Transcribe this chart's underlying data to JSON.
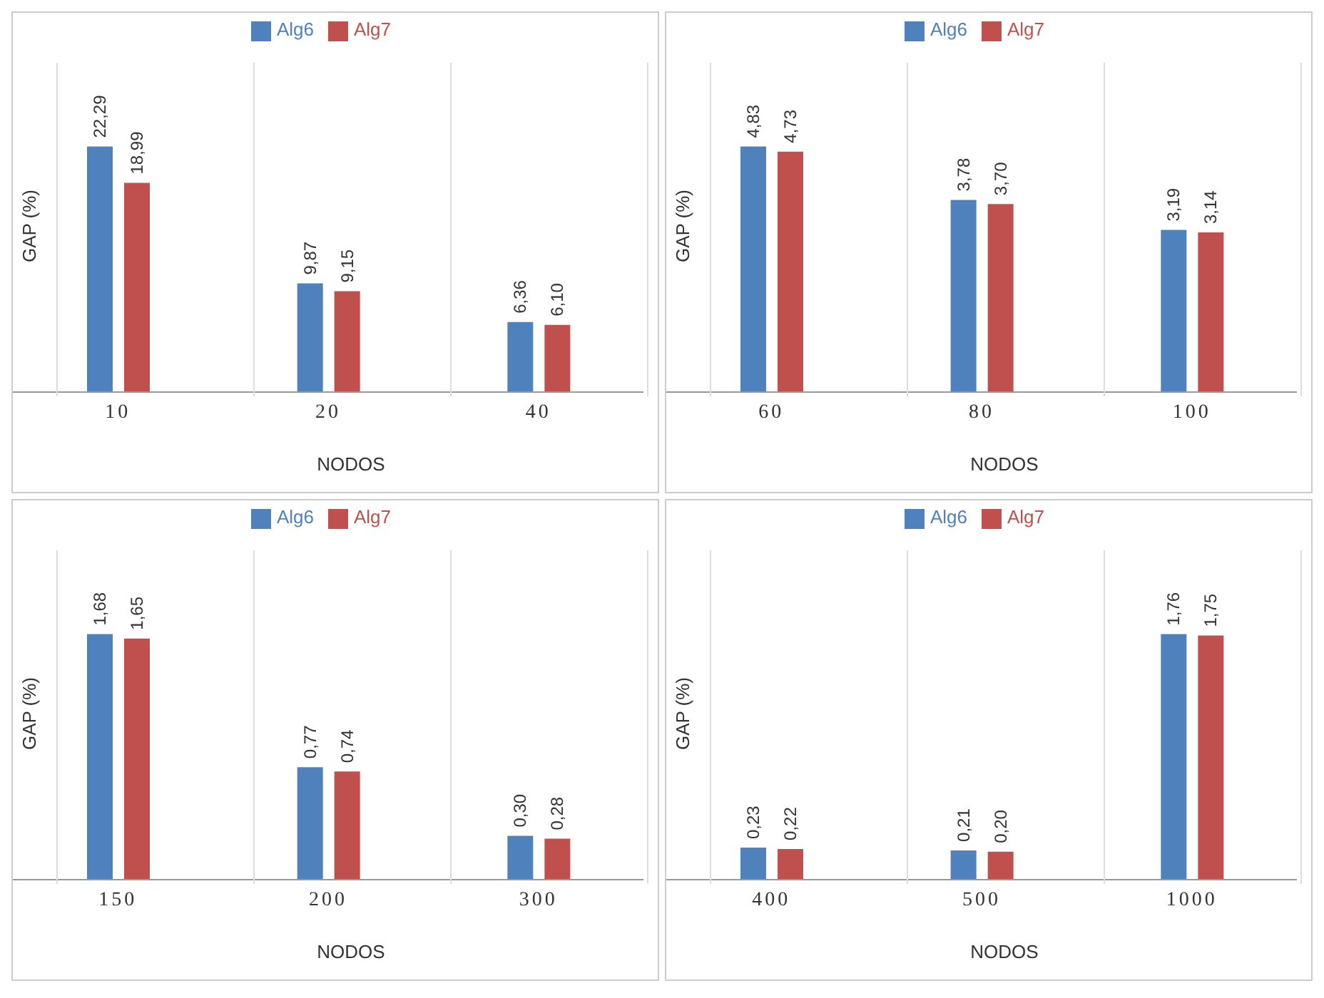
{
  "chart_data": [
    {
      "type": "bar",
      "xlabel": "NODOS",
      "ylabel": "GAP (%)",
      "categories": [
        "10",
        "20",
        "40"
      ],
      "series": [
        {
          "name": "Alg6",
          "color": "#4f81bd",
          "values": [
            22.29,
            9.87,
            6.36
          ],
          "value_labels": [
            "22,29",
            "9,87",
            "6,36"
          ]
        },
        {
          "name": "Alg7",
          "color": "#c0504d",
          "values": [
            18.99,
            9.15,
            6.1
          ],
          "value_labels": [
            "18,99",
            "9,15",
            "6,10"
          ]
        }
      ],
      "legend": "top",
      "grid": "x"
    },
    {
      "type": "bar",
      "xlabel": "NODOS",
      "ylabel": "GAP (%)",
      "categories": [
        "60",
        "80",
        "100"
      ],
      "series": [
        {
          "name": "Alg6",
          "color": "#4f81bd",
          "values": [
            4.83,
            3.78,
            3.19
          ],
          "value_labels": [
            "4,83",
            "3,78",
            "3,19"
          ]
        },
        {
          "name": "Alg7",
          "color": "#c0504d",
          "values": [
            4.73,
            3.7,
            3.14
          ],
          "value_labels": [
            "4,73",
            "3,70",
            "3,14"
          ]
        }
      ],
      "legend": "top",
      "grid": "x"
    },
    {
      "type": "bar",
      "xlabel": "NODOS",
      "ylabel": "GAP (%)",
      "categories": [
        "150",
        "200",
        "300"
      ],
      "series": [
        {
          "name": "Alg6",
          "color": "#4f81bd",
          "values": [
            1.68,
            0.77,
            0.3
          ],
          "value_labels": [
            "1,68",
            "0,77",
            "0,30"
          ]
        },
        {
          "name": "Alg7",
          "color": "#c0504d",
          "values": [
            1.65,
            0.74,
            0.28
          ],
          "value_labels": [
            "1,65",
            "0,74",
            "0,28"
          ]
        }
      ],
      "legend": "top",
      "grid": "x"
    },
    {
      "type": "bar",
      "xlabel": "NODOS",
      "ylabel": "GAP (%)",
      "categories": [
        "400",
        "500",
        "1000"
      ],
      "series": [
        {
          "name": "Alg6",
          "color": "#4f81bd",
          "values": [
            0.23,
            0.21,
            1.76
          ],
          "value_labels": [
            "0,23",
            "0,21",
            "1,76"
          ]
        },
        {
          "name": "Alg7",
          "color": "#c0504d",
          "values": [
            0.22,
            0.2,
            1.75
          ],
          "value_labels": [
            "0,22",
            "0,20",
            "1,75"
          ]
        }
      ],
      "legend": "top",
      "grid": "x"
    }
  ]
}
